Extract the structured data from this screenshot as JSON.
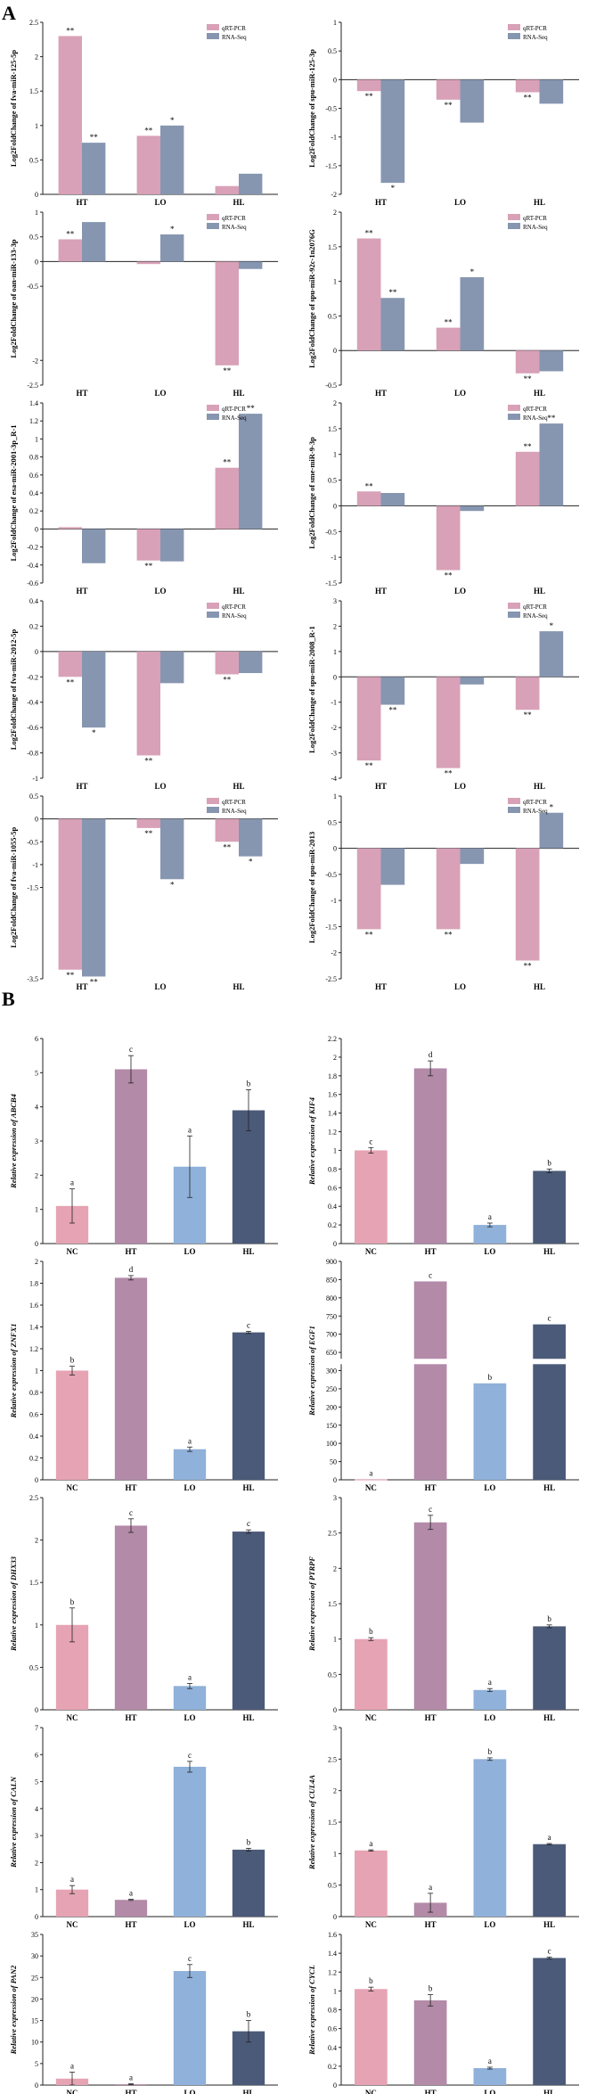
{
  "figure": {
    "section_a_label": "A",
    "section_b_label": "B"
  },
  "colors": {
    "pink": "#d8a1b7",
    "blue_grey": "#8796b0",
    "nc": "#e6a3b3",
    "ht": "#b38aa8",
    "lo": "#8fb1da",
    "hl": "#4b5a78"
  },
  "chart_data": [
    {
      "type": "bar",
      "panel": "A",
      "ylabel": "Log2FoldChange of fva-miR-125-5p",
      "categories": [
        "HT",
        "LO",
        "HL"
      ],
      "series": [
        {
          "name": "qRT-PCR",
          "values": [
            2.3,
            0.85,
            0.12
          ]
        },
        {
          "name": "RNA-Seq",
          "values": [
            0.75,
            1.0,
            0.3
          ]
        }
      ],
      "sig": [
        [
          "**",
          "**"
        ],
        [
          "**",
          "*"
        ],
        [
          "",
          ""
        ]
      ],
      "ylim": [
        0,
        2.5
      ],
      "ticks": [
        0,
        0.5,
        1,
        1.5,
        2,
        2.5
      ]
    },
    {
      "type": "bar",
      "panel": "A",
      "ylabel": "Log2FoldChange of spu-miR-125-3p",
      "categories": [
        "HT",
        "LO",
        "HL"
      ],
      "series": [
        {
          "name": "qRT-PCR",
          "values": [
            -0.2,
            -0.35,
            -0.22
          ]
        },
        {
          "name": "RNA-Seq",
          "values": [
            -1.8,
            -0.75,
            -0.42
          ]
        }
      ],
      "sig": [
        [
          "**",
          "*"
        ],
        [
          "**",
          ""
        ],
        [
          "**",
          ""
        ]
      ],
      "ylim": [
        -2,
        1
      ],
      "ticks": [
        -2,
        -1.5,
        -1,
        -0.5,
        0,
        0.5,
        1
      ]
    },
    {
      "type": "bar",
      "panel": "A",
      "ylabel": "Log2FoldChange of oan-miR-133-3p",
      "categories": [
        "HT",
        "LO",
        "HL"
      ],
      "series": [
        {
          "name": "qRT-PCR",
          "values": [
            0.45,
            -0.05,
            -2.1
          ]
        },
        {
          "name": "RNA-Seq",
          "values": [
            0.8,
            0.55,
            -0.15
          ]
        }
      ],
      "sig": [
        [
          "**",
          ""
        ],
        [
          "",
          "*"
        ],
        [
          "**",
          ""
        ]
      ],
      "ylim": [
        -2.5,
        1
      ],
      "ticks": [
        -2.5,
        -2,
        -0.5,
        0,
        0.5,
        1
      ]
    },
    {
      "type": "bar",
      "panel": "A",
      "ylabel": "Log2FoldChange of spu-miR-92c-1n2076G",
      "categories": [
        "HT",
        "LO",
        "HL"
      ],
      "series": [
        {
          "name": "qRT-PCR",
          "values": [
            1.62,
            0.33,
            -0.33
          ]
        },
        {
          "name": "RNA-Seq",
          "values": [
            0.76,
            1.06,
            -0.3
          ]
        }
      ],
      "sig": [
        [
          "**",
          "**"
        ],
        [
          "**",
          "*"
        ],
        [
          "**",
          ""
        ]
      ],
      "ylim": [
        -0.5,
        2
      ],
      "ticks": [
        -0.5,
        0,
        0.5,
        1,
        1.5,
        2
      ]
    },
    {
      "type": "bar",
      "panel": "A",
      "ylabel": "Log2FoldChange of esa-miR-2001-3p_R-1",
      "categories": [
        "HT",
        "LO",
        "HL"
      ],
      "series": [
        {
          "name": "qRT-PCR",
          "values": [
            0.02,
            -0.35,
            0.68
          ]
        },
        {
          "name": "RNA-Seq",
          "values": [
            -0.38,
            -0.36,
            1.28
          ]
        }
      ],
      "sig": [
        [
          "",
          ""
        ],
        [
          "**",
          ""
        ],
        [
          "**",
          "**"
        ]
      ],
      "ylim": [
        -0.6,
        1.4
      ],
      "ticks": [
        -0.6,
        -0.4,
        -0.2,
        0,
        0.2,
        0.4,
        0.6,
        0.8,
        1,
        1.2,
        1.4
      ]
    },
    {
      "type": "bar",
      "panel": "A",
      "ylabel": "Log2FoldChange of sme-miR-9-3p",
      "categories": [
        "HT",
        "LO",
        "HL"
      ],
      "series": [
        {
          "name": "qRT-PCR",
          "values": [
            0.28,
            -1.25,
            1.05
          ]
        },
        {
          "name": "RNA-Seq",
          "values": [
            0.25,
            -0.1,
            1.6
          ]
        }
      ],
      "sig": [
        [
          "**",
          ""
        ],
        [
          "**",
          ""
        ],
        [
          "**",
          "**"
        ]
      ],
      "ylim": [
        -1.5,
        2
      ],
      "ticks": [
        -1.5,
        -1,
        -0.5,
        0,
        0.5,
        1,
        1.5,
        2
      ]
    },
    {
      "type": "bar",
      "panel": "A",
      "ylabel": "Log2FoldChange of fva-miR-2012-5p",
      "categories": [
        "HT",
        "LO",
        "HL"
      ],
      "series": [
        {
          "name": "qRT-PCR",
          "values": [
            -0.2,
            -0.82,
            -0.18
          ]
        },
        {
          "name": "RNA-Seq",
          "values": [
            -0.6,
            -0.25,
            -0.17
          ]
        }
      ],
      "sig": [
        [
          "**",
          "*"
        ],
        [
          "**",
          ""
        ],
        [
          "**",
          ""
        ]
      ],
      "ylim": [
        -1,
        0.4
      ],
      "ticks": [
        -1,
        -0.8,
        -0.6,
        -0.4,
        -0.2,
        0,
        0.2,
        0.4
      ]
    },
    {
      "type": "bar",
      "panel": "A",
      "ylabel": "Log2FoldChange of spu-miR-2008_R-1",
      "categories": [
        "HT",
        "LO",
        "HL"
      ],
      "series": [
        {
          "name": "qRT-PCR",
          "values": [
            -3.3,
            -3.6,
            -1.3
          ]
        },
        {
          "name": "RNA-Seq",
          "values": [
            -1.1,
            -0.3,
            1.8
          ]
        }
      ],
      "sig": [
        [
          "**",
          "**"
        ],
        [
          "**",
          ""
        ],
        [
          "**",
          "*"
        ]
      ],
      "ylim": [
        -4,
        3
      ],
      "ticks": [
        -4,
        -3,
        -2,
        -1,
        0,
        1,
        2,
        3
      ]
    },
    {
      "type": "bar",
      "panel": "A",
      "ylabel": "Log2FoldChange of fva-miR-1055-5p",
      "categories": [
        "HT",
        "LO",
        "HL"
      ],
      "series": [
        {
          "name": "qRT-PCR",
          "values": [
            -3.3,
            -0.2,
            -0.5
          ]
        },
        {
          "name": "RNA-Seq",
          "values": [
            -3.45,
            -1.32,
            -0.82
          ]
        }
      ],
      "sig": [
        [
          "**",
          "**"
        ],
        [
          "**",
          "*"
        ],
        [
          "**",
          "*"
        ]
      ],
      "ylim": [
        -3.5,
        0.5
      ],
      "ticks": [
        -3.5,
        -1.5,
        -1,
        -0.5,
        0,
        0.5
      ]
    },
    {
      "type": "bar",
      "panel": "A",
      "ylabel": "Log2FoldChange of spu-miR-2013",
      "categories": [
        "HT",
        "LO",
        "HL"
      ],
      "series": [
        {
          "name": "qRT-PCR",
          "values": [
            -1.55,
            -1.55,
            -2.15
          ]
        },
        {
          "name": "RNA-Seq",
          "values": [
            -0.7,
            -0.3,
            0.68
          ]
        }
      ],
      "sig": [
        [
          "**",
          ""
        ],
        [
          "**",
          ""
        ],
        [
          "**",
          "*"
        ]
      ],
      "ylim": [
        -2.5,
        1
      ],
      "ticks": [
        -2.5,
        -2,
        -1.5,
        -1,
        -0.5,
        0,
        0.5,
        1
      ]
    },
    {
      "type": "bar",
      "panel": "B",
      "ylabel": "Relative expression of ABCB4",
      "categories": [
        "NC",
        "HT",
        "LO",
        "HL"
      ],
      "values": [
        1.1,
        5.1,
        2.25,
        3.9
      ],
      "errors": [
        0.5,
        0.4,
        0.9,
        0.6
      ],
      "letters": [
        "a",
        "c",
        "a",
        "b"
      ],
      "ylim": [
        0,
        6
      ],
      "ticks": [
        0,
        1,
        2,
        3,
        4,
        5,
        6
      ]
    },
    {
      "type": "bar",
      "panel": "B",
      "ylabel": "Relative expression of KIF4",
      "categories": [
        "NC",
        "HT",
        "LO",
        "HL"
      ],
      "values": [
        1.0,
        1.88,
        0.2,
        0.78
      ],
      "errors": [
        0.03,
        0.08,
        0.02,
        0.02
      ],
      "letters": [
        "c",
        "d",
        "a",
        "b"
      ],
      "ylim": [
        0,
        2.2
      ],
      "ticks": [
        0,
        0.2,
        0.4,
        0.6,
        0.8,
        1,
        1.2,
        1.4,
        1.6,
        1.8,
        2,
        2.2
      ]
    },
    {
      "type": "bar",
      "panel": "B",
      "ylabel": "Relative expression of ZNFX1",
      "categories": [
        "NC",
        "HT",
        "LO",
        "HL"
      ],
      "values": [
        1.0,
        1.85,
        0.28,
        1.35
      ],
      "errors": [
        0.04,
        0.02,
        0.02,
        0.01
      ],
      "letters": [
        "b",
        "d",
        "a",
        "c"
      ],
      "ylim": [
        0,
        2
      ],
      "ticks": [
        0,
        0.2,
        0.4,
        0.6,
        0.8,
        1,
        1.2,
        1.4,
        1.6,
        1.8,
        2
      ]
    },
    {
      "type": "bar",
      "panel": "B",
      "ylabel": "Relative expression of EGF1",
      "categories": [
        "NC",
        "HT",
        "LO",
        "HL"
      ],
      "values": [
        1,
        845,
        265,
        727
      ],
      "letters": [
        "a",
        "c",
        "b",
        "c"
      ],
      "ylim": [
        0,
        900
      ],
      "tick_labels": [
        "0",
        "50",
        "100",
        "150",
        "200",
        "250",
        "300",
        "650",
        "700",
        "750",
        "800",
        "850",
        "900"
      ]
    },
    {
      "type": "bar",
      "panel": "B",
      "ylabel": "Relative expression of DHX33",
      "categories": [
        "NC",
        "HT",
        "LO",
        "HL"
      ],
      "values": [
        1.0,
        2.17,
        0.28,
        2.1
      ],
      "errors": [
        0.2,
        0.08,
        0.03,
        0.02
      ],
      "letters": [
        "b",
        "c",
        "a",
        "c"
      ],
      "ylim": [
        0,
        2.5
      ],
      "ticks": [
        0,
        0.5,
        1,
        1.5,
        2,
        2.5
      ]
    },
    {
      "type": "bar",
      "panel": "B",
      "ylabel": "Relative expression of PTRPF",
      "categories": [
        "NC",
        "HT",
        "LO",
        "HL"
      ],
      "values": [
        1.0,
        2.65,
        0.28,
        1.18
      ],
      "errors": [
        0.02,
        0.1,
        0.02,
        0.02
      ],
      "letters": [
        "b",
        "c",
        "a",
        "b"
      ],
      "ylim": [
        0,
        3
      ],
      "ticks": [
        0,
        0.5,
        1,
        1.5,
        2,
        2.5,
        3
      ]
    },
    {
      "type": "bar",
      "panel": "B",
      "ylabel": "Relative expression of CALN",
      "categories": [
        "NC",
        "HT",
        "LO",
        "HL"
      ],
      "values": [
        1.0,
        0.62,
        5.55,
        2.48
      ],
      "errors": [
        0.15,
        0.02,
        0.2,
        0.05
      ],
      "letters": [
        "a",
        "a",
        "c",
        "b"
      ],
      "ylim": [
        0,
        7
      ],
      "ticks": [
        0,
        1,
        2,
        3,
        4,
        5,
        6,
        7
      ]
    },
    {
      "type": "bar",
      "panel": "B",
      "ylabel": "Relative expression of CUL4A",
      "categories": [
        "NC",
        "HT",
        "LO",
        "HL"
      ],
      "values": [
        1.05,
        0.22,
        2.5,
        1.15
      ],
      "errors": [
        0.01,
        0.15,
        0.02,
        0.01
      ],
      "letters": [
        "a",
        "a",
        "b",
        "a"
      ],
      "ylim": [
        0,
        3
      ],
      "ticks": [
        0,
        0.5,
        1,
        1.5,
        2,
        2.5,
        3
      ]
    },
    {
      "type": "bar",
      "panel": "B",
      "ylabel": "Relative expression of PAN2",
      "categories": [
        "NC",
        "HT",
        "LO",
        "HL"
      ],
      "values": [
        1.5,
        0.2,
        26.5,
        12.5
      ],
      "errors": [
        1.5,
        0.1,
        1.5,
        2.5
      ],
      "letters": [
        "a",
        "a",
        "c",
        "b"
      ],
      "ylim": [
        0,
        35
      ],
      "ticks": [
        0,
        5,
        10,
        15,
        20,
        25,
        30,
        35
      ]
    },
    {
      "type": "bar",
      "panel": "B",
      "ylabel": "Relative expression of CYCL",
      "categories": [
        "NC",
        "HT",
        "LO",
        "HL"
      ],
      "values": [
        1.02,
        0.9,
        0.18,
        1.35
      ],
      "errors": [
        0.02,
        0.06,
        0.01,
        0.01
      ],
      "letters": [
        "b",
        "b",
        "a",
        "c"
      ],
      "ylim": [
        0,
        1.6
      ],
      "ticks": [
        0,
        0.2,
        0.4,
        0.6,
        0.8,
        1,
        1.2,
        1.4,
        1.6
      ]
    }
  ],
  "legend": {
    "qrt_pcr": "qRT-PCR",
    "rna_seq": "RNA-Seq"
  }
}
